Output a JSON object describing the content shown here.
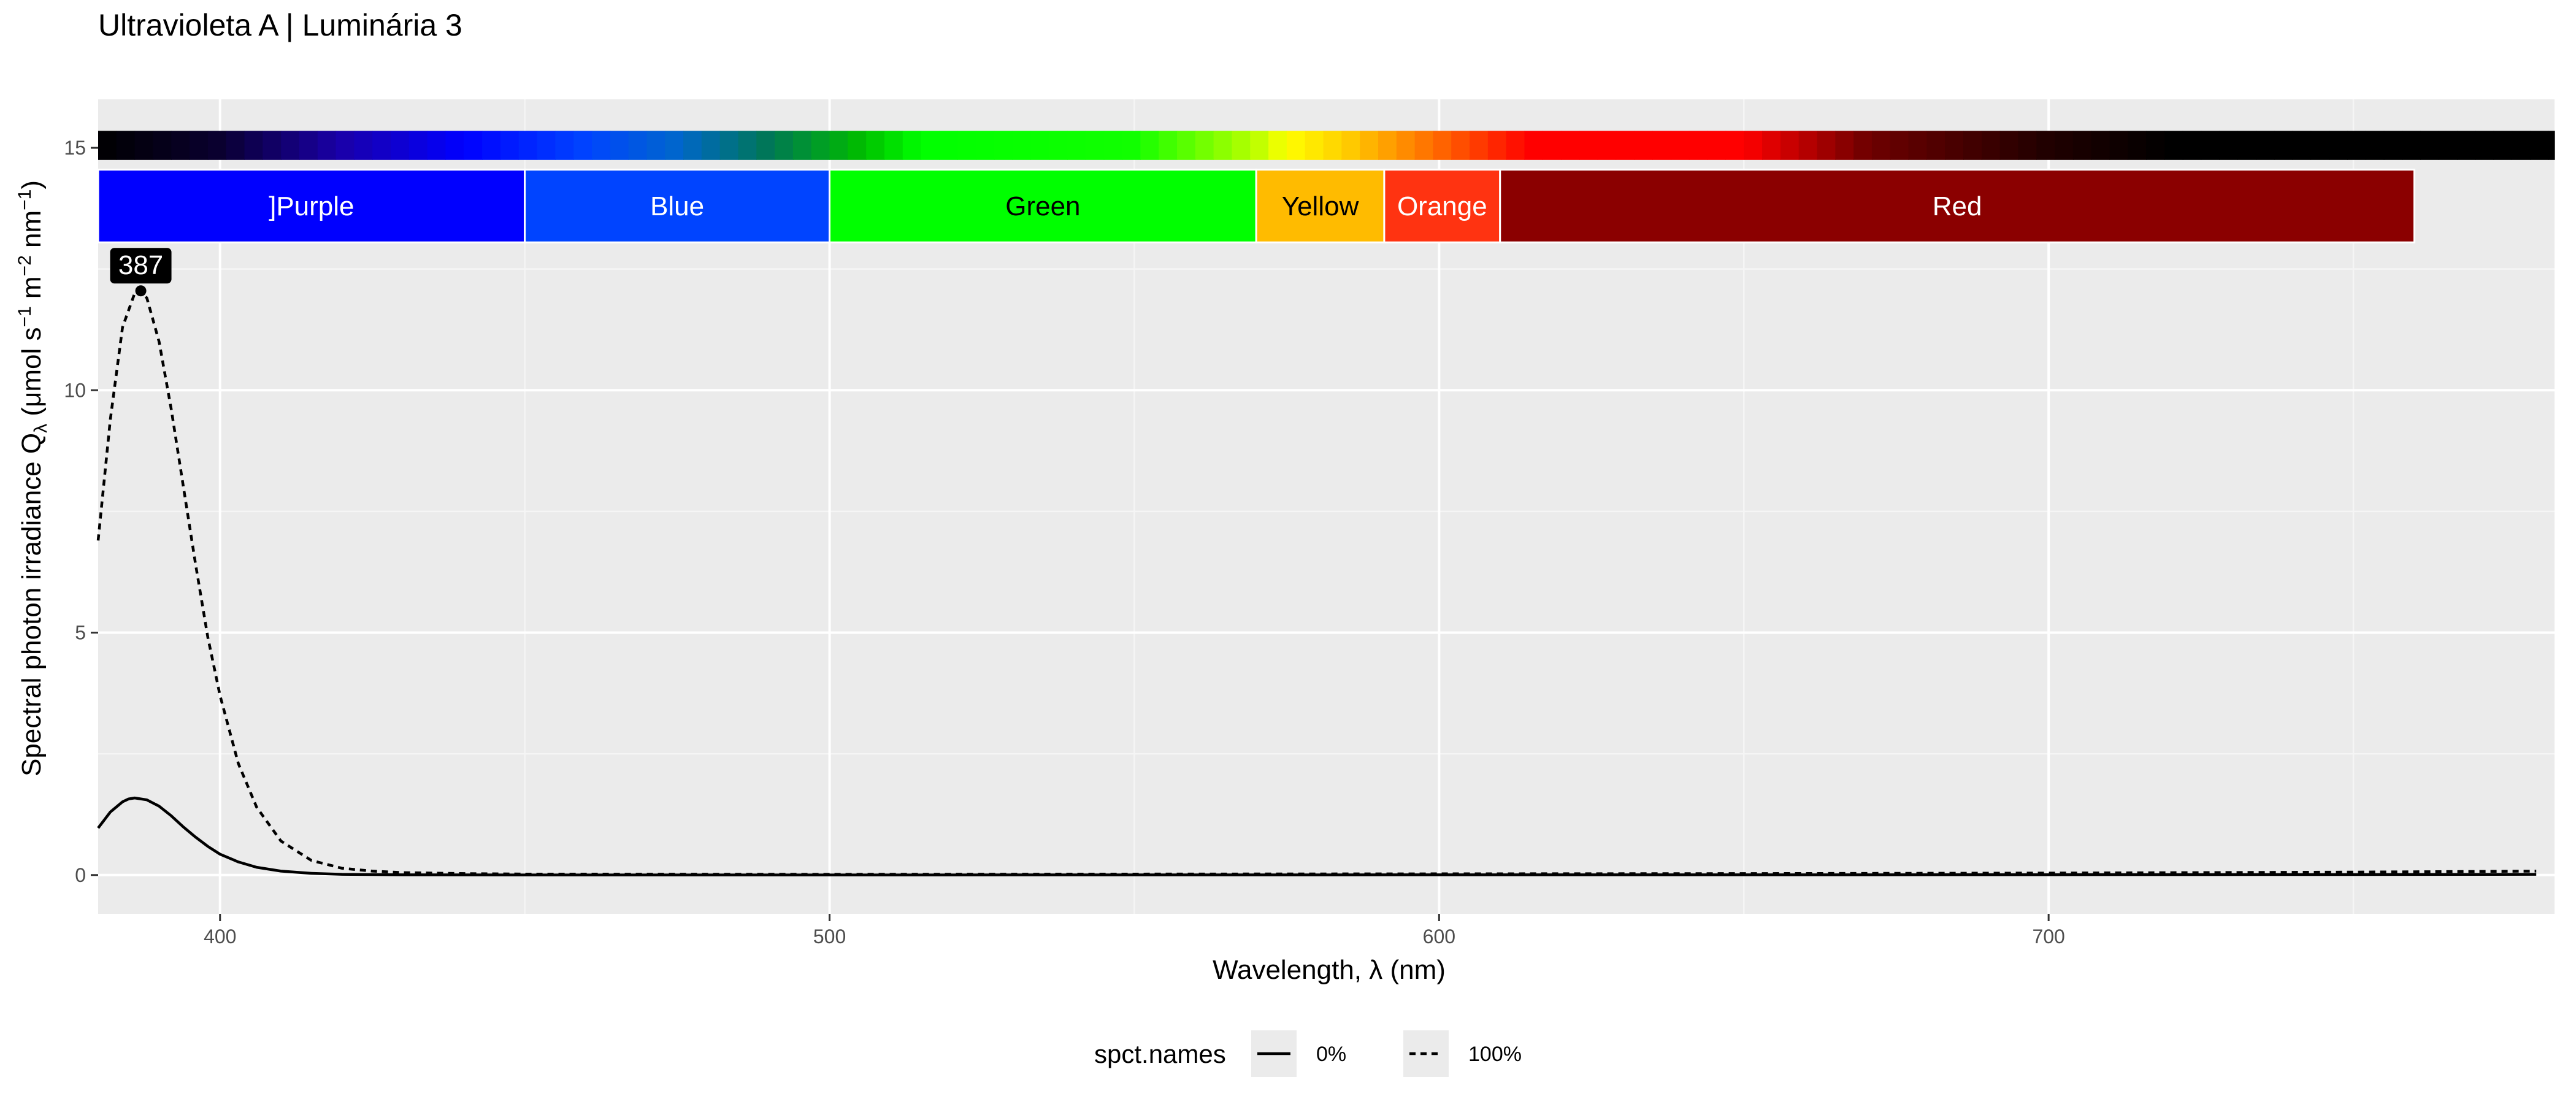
{
  "chart_data": {
    "type": "line",
    "title": "Ultravioleta A | Luminária 3",
    "xlabel": "Wavelength, λ (nm)",
    "ylabel_parts": [
      "Spectral  photon  irradiance  Q",
      "λ",
      "  (μmol s",
      "−1",
      "  m",
      "−2",
      "  nm",
      "−1",
      ")"
    ],
    "xlim": [
      380,
      783
    ],
    "ylim": [
      -0.8,
      16
    ],
    "x_ticks": [
      400,
      500,
      600,
      700
    ],
    "y_ticks": [
      0,
      5,
      10,
      15
    ],
    "grid": true,
    "legend_position": "bottom",
    "legend_title": "spct.names",
    "series": [
      {
        "name": "0%",
        "dash": "solid",
        "x": [
          380,
          382,
          384,
          385,
          386,
          388,
          390,
          392,
          394,
          396,
          398,
          400,
          403,
          406,
          410,
          415,
          420,
          430,
          450,
          500,
          550,
          600,
          650,
          700,
          750,
          780
        ],
        "y": [
          0.97,
          1.3,
          1.51,
          1.57,
          1.59,
          1.55,
          1.42,
          1.22,
          0.99,
          0.78,
          0.59,
          0.43,
          0.27,
          0.16,
          0.08,
          0.035,
          0.015,
          0.005,
          0.002,
          0.002,
          0.003,
          0.004,
          0.005,
          0.007,
          0.01,
          0.015
        ]
      },
      {
        "name": "100%",
        "dash": "dashed",
        "x": [
          380,
          382,
          384,
          386,
          387,
          388,
          390,
          392,
          394,
          396,
          398,
          400,
          403,
          406,
          410,
          415,
          420,
          425,
          430,
          440,
          450,
          500,
          550,
          600,
          650,
          700,
          750,
          780
        ],
        "y": [
          6.9,
          9.4,
          11.3,
          12.0,
          12.05,
          11.9,
          11.0,
          9.6,
          8.0,
          6.4,
          4.9,
          3.7,
          2.3,
          1.4,
          0.7,
          0.3,
          0.14,
          0.08,
          0.05,
          0.03,
          0.02,
          0.015,
          0.02,
          0.025,
          0.03,
          0.04,
          0.06,
          0.08
        ]
      }
    ],
    "peak_annotation": {
      "label": "387",
      "x": 387,
      "y": 12.05
    },
    "color_bands": [
      {
        "label": "]Purple",
        "from": 380,
        "to": 450,
        "fill": "#0000ff",
        "text_color": "#ffffff"
      },
      {
        "label": "Blue",
        "from": 450,
        "to": 500,
        "fill": "#0044ff",
        "text_color": "#ffffff"
      },
      {
        "label": "Green",
        "from": 500,
        "to": 570,
        "fill": "#00ff00",
        "text_color": "#000000"
      },
      {
        "label": "Yellow",
        "from": 570,
        "to": 591,
        "fill": "#ffbb00",
        "text_color": "#000000"
      },
      {
        "label": "Orange",
        "from": 591,
        "to": 610,
        "fill": "#ff3311",
        "text_color": "#ffffff"
      },
      {
        "label": "Red",
        "from": 610,
        "to": 760,
        "fill": "#8b0000",
        "text_color": "#ffffff"
      }
    ],
    "wavelength_color_stops": [
      {
        "wl": 380,
        "color": "#000000"
      },
      {
        "wl": 400,
        "color": "#0a0030"
      },
      {
        "wl": 420,
        "color": "#1a00aa"
      },
      {
        "wl": 440,
        "color": "#0000ff"
      },
      {
        "wl": 460,
        "color": "#0044ff"
      },
      {
        "wl": 475,
        "color": "#0066cc"
      },
      {
        "wl": 490,
        "color": "#007755"
      },
      {
        "wl": 505,
        "color": "#00bb00"
      },
      {
        "wl": 515,
        "color": "#00ff00"
      },
      {
        "wl": 550,
        "color": "#11ff00"
      },
      {
        "wl": 570,
        "color": "#bbff00"
      },
      {
        "wl": 575,
        "color": "#ffff00"
      },
      {
        "wl": 585,
        "color": "#ffcc00"
      },
      {
        "wl": 600,
        "color": "#ff6600"
      },
      {
        "wl": 615,
        "color": "#ff0000"
      },
      {
        "wl": 650,
        "color": "#ff0000"
      },
      {
        "wl": 670,
        "color": "#700000"
      },
      {
        "wl": 700,
        "color": "#200000"
      },
      {
        "wl": 720,
        "color": "#000000"
      },
      {
        "wl": 783,
        "color": "#000000"
      }
    ],
    "colors": {
      "panel_background": "#ebebeb",
      "grid_major": "#ffffff",
      "grid_minor": "#f5f5f5",
      "line": "#000000",
      "label_box": "#000000"
    }
  }
}
